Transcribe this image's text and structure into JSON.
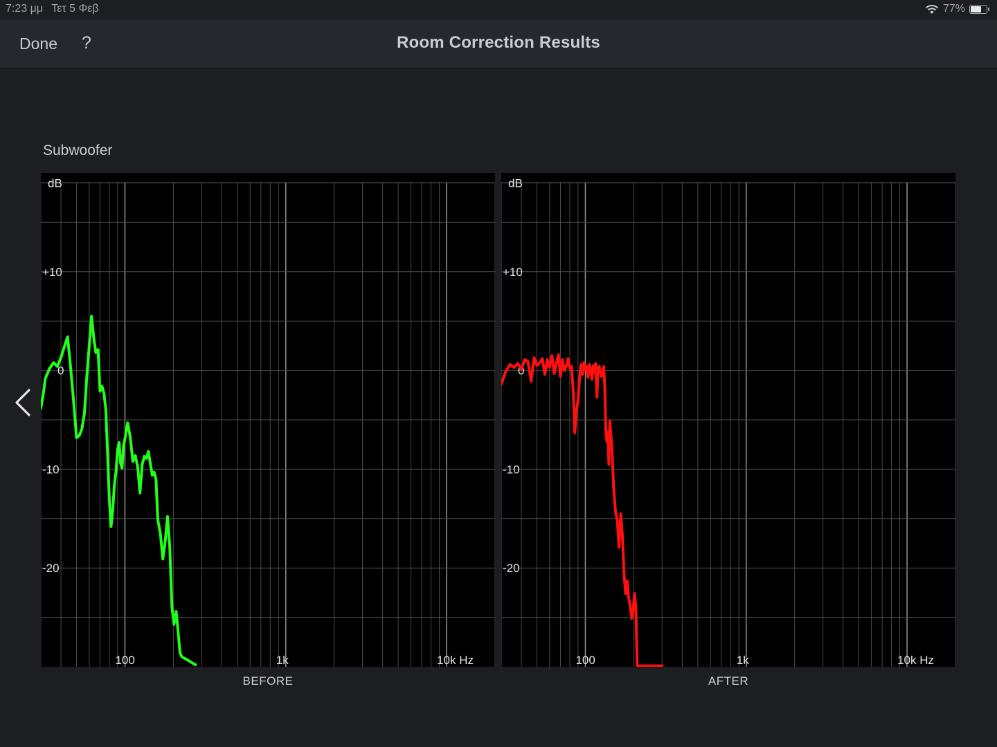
{
  "status_bar": {
    "time": "7:23 μμ",
    "date": "Τετ 5 Φεβ",
    "battery": "77%",
    "battery_level": 0.77,
    "wifi_icon": "wifi-icon",
    "battery_icon": "battery-icon"
  },
  "nav": {
    "done_label": "Done",
    "help_label": "?",
    "title": "Room Correction Results"
  },
  "section_label": "Subwoofer",
  "back_icon": "chevron-left-icon",
  "colors": {
    "before_curve": "#22ff1a",
    "after_curve": "#ff1010",
    "background": "#1c1e22",
    "plot_background": "#000000",
    "grid": "#5a5a5a"
  },
  "chart_data": [
    {
      "type": "line",
      "caption": "BEFORE",
      "ylabel": "dB",
      "x_scale": "log",
      "xlim": [
        30,
        20000
      ],
      "ylim": [
        -30,
        20
      ],
      "y_ticks": [
        {
          "value": 10,
          "label": "+10"
        },
        {
          "value": 0,
          "label": "0"
        },
        {
          "value": -10,
          "label": "-10"
        },
        {
          "value": -20,
          "label": "-20"
        }
      ],
      "x_ticks": [
        {
          "value": 100,
          "label": "100"
        },
        {
          "value": 1000,
          "label": "1k"
        },
        {
          "value": 10000,
          "label": "10k Hz"
        }
      ],
      "grid": true,
      "series": [
        {
          "x": [
            30,
            31,
            32,
            34,
            36,
            38,
            40,
            42,
            44,
            46,
            48,
            50,
            52,
            54,
            56,
            58,
            60,
            62,
            64,
            66,
            68,
            70,
            72,
            74,
            76,
            78,
            80,
            82,
            84,
            86,
            88,
            90,
            92,
            94,
            96,
            98,
            100,
            104,
            108,
            112,
            116,
            120,
            124,
            128,
            132,
            136,
            140,
            144,
            148,
            152,
            156,
            160,
            166,
            172,
            178,
            184,
            190,
            196,
            202,
            208,
            214,
            220,
            226,
            232,
            238,
            244,
            250,
            256,
            262,
            268,
            275
          ],
          "y": [
            -3.8,
            -2.5,
            -0.8,
            0.2,
            0.8,
            0.4,
            1.3,
            2.4,
            3.4,
            0.2,
            -3.2,
            -6.8,
            -6.6,
            -5.9,
            -4.3,
            -0.5,
            2.5,
            5.5,
            3.3,
            1.8,
            2.1,
            -2.1,
            -1.6,
            -2.3,
            -3.9,
            -8.5,
            -13.2,
            -15.8,
            -14.1,
            -11.6,
            -10.2,
            -8.0,
            -7.3,
            -9.4,
            -9.9,
            -7.6,
            -6.9,
            -5.3,
            -6.8,
            -9.2,
            -8.6,
            -9.8,
            -12.4,
            -9.5,
            -8.7,
            -8.9,
            -8.2,
            -9.5,
            -10.6,
            -10.3,
            -11.0,
            -15.1,
            -16.5,
            -19.1,
            -17.3,
            -14.8,
            -17.9,
            -24.0,
            -25.7,
            -24.4,
            -26.4,
            -28.6,
            -29.0,
            -29.1,
            -29.2,
            -29.3,
            -29.4,
            -29.5,
            -29.6,
            -29.7,
            -29.8
          ]
        }
      ]
    },
    {
      "type": "line",
      "caption": "AFTER",
      "ylabel": "dB",
      "x_scale": "log",
      "xlim": [
        30,
        20000
      ],
      "ylim": [
        -30,
        20
      ],
      "y_ticks": [
        {
          "value": 10,
          "label": "+10"
        },
        {
          "value": 0,
          "label": "0"
        },
        {
          "value": -10,
          "label": "-10"
        },
        {
          "value": -20,
          "label": "-20"
        }
      ],
      "x_ticks": [
        {
          "value": 100,
          "label": "100"
        },
        {
          "value": 1000,
          "label": "1k"
        },
        {
          "value": 10000,
          "label": "10k Hz"
        }
      ],
      "grid": true,
      "series": [
        {
          "x": [
            30,
            32,
            34,
            36,
            38,
            40,
            42,
            44,
            46,
            48,
            50,
            52,
            54,
            56,
            58,
            60,
            62,
            64,
            66,
            68,
            70,
            72,
            74,
            76,
            78,
            80,
            82,
            84,
            86,
            88,
            90,
            92,
            94,
            96,
            98,
            100,
            102,
            104,
            106,
            108,
            110,
            112,
            114,
            116,
            118,
            120,
            122,
            124,
            126,
            128,
            130,
            132,
            134,
            136,
            138,
            140,
            142,
            146,
            150,
            154,
            158,
            162,
            166,
            170,
            174,
            178,
            182,
            186,
            190,
            194,
            198,
            202,
            206,
            210,
            214,
            218,
            222,
            226,
            230,
            234,
            240,
            250,
            260,
            270,
            280,
            290,
            300
          ],
          "y": [
            -1.4,
            -0.1,
            0.6,
            0.3,
            0.7,
            0.1,
            1.1,
            0.9,
            -1.1,
            1.3,
            0.5,
            0.8,
            1.2,
            -0.4,
            1.1,
            0.3,
            1.5,
            -0.3,
            0.7,
            1.6,
            -0.6,
            1.1,
            0.0,
            0.4,
            1.2,
            0.2,
            0.4,
            -2.0,
            -6.3,
            -4.0,
            -3.1,
            -0.8,
            0.6,
            -0.4,
            0.8,
            0.1,
            0.4,
            -0.7,
            0.6,
            0.2,
            -0.9,
            0.5,
            -0.2,
            0.7,
            -2.7,
            0.2,
            0.4,
            -0.1,
            -0.6,
            0.0,
            0.4,
            -1.6,
            -6.1,
            -7.2,
            -6.2,
            -9.5,
            -5.1,
            -7.6,
            -12.0,
            -14.3,
            -15.2,
            -17.9,
            -14.5,
            -16.8,
            -20.6,
            -22.6,
            -21.3,
            -23.1,
            -23.8,
            -25.1,
            -24.3,
            -22.6,
            -24.0,
            -29.9,
            -29.9,
            -29.9,
            -29.9,
            -29.9,
            -29.9,
            -29.9,
            -29.9,
            -29.9,
            -29.9,
            -29.9,
            -29.9,
            -29.9,
            -29.9
          ]
        }
      ]
    }
  ]
}
